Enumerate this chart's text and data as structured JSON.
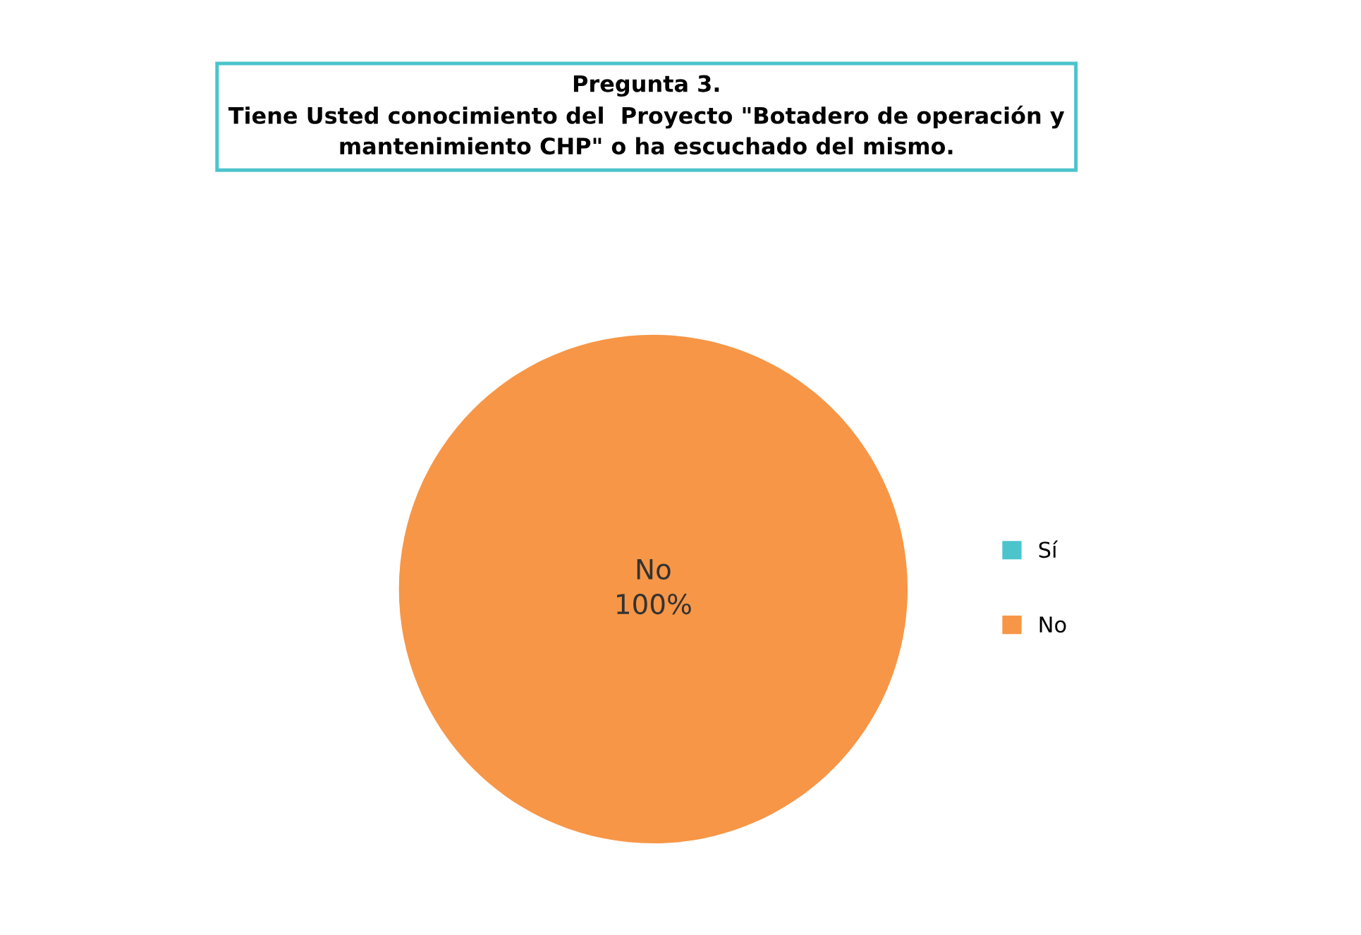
{
  "chart_data": {
    "type": "pie",
    "title": "Pregunta 3.\nTiene Usted conocimiento del  Proyecto \"Botadero de operación y\nmantenimiento CHP\" o ha escuchado del mismo.",
    "categories": [
      "Sí",
      "No"
    ],
    "values": [
      0,
      100
    ],
    "colors": [
      "#4bc4cc",
      "#f79646"
    ],
    "value_labels": [
      null,
      "No\n100%"
    ],
    "legend": "right"
  }
}
